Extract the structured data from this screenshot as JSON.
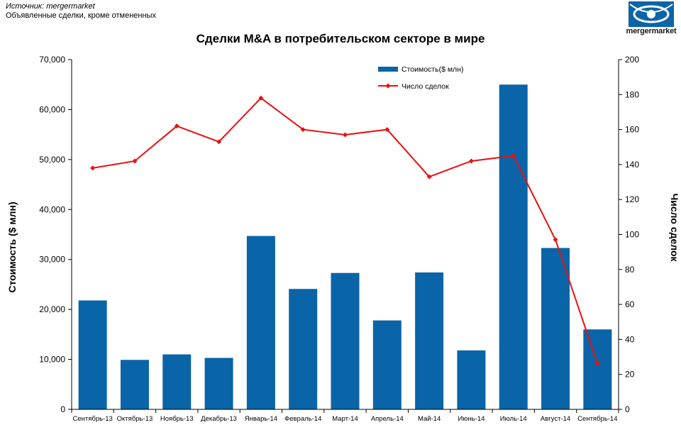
{
  "header": {
    "source": "Источник: mergermarket",
    "note": "Объявленные сделки, кроме отмененных",
    "logo_text": "mergermarket"
  },
  "colors": {
    "bar": "#0a64a8",
    "line": "#e81010",
    "logo": "#0a64a8"
  },
  "chart_data": {
    "type": "bar",
    "title": "Сделки M&A в потребительском секторе в мире",
    "categories": [
      "Сентябрь-13",
      "Октябрь-13",
      "Ноябрь-13",
      "Декабрь-13",
      "Январь-14",
      "Февраль-14",
      "Март-14",
      "Апрель-14",
      "Май-14",
      "Июнь-14",
      "Июль-14",
      "Август-14",
      "Сентябрь-14"
    ],
    "series": [
      {
        "name": "Стоимость($ млн)",
        "type": "bar",
        "axis": "left",
        "values": [
          21800,
          9900,
          11000,
          10300,
          34700,
          24100,
          27300,
          17800,
          27400,
          11800,
          65000,
          32300,
          16000
        ]
      },
      {
        "name": "Число сделок",
        "type": "line",
        "axis": "right",
        "values": [
          138,
          142,
          162,
          153,
          178,
          160,
          157,
          160,
          133,
          142,
          145,
          97,
          26
        ]
      }
    ],
    "ylabel": "Стоимость ($ млн)",
    "ylabel_right": "Число сделок",
    "ylim": [
      0,
      70000
    ],
    "ylim_right": [
      0,
      200
    ],
    "yticks": [
      "0",
      "10,000",
      "20,000",
      "30,000",
      "40,000",
      "50,000",
      "60,000",
      "70,000"
    ],
    "yticks_right": [
      "0",
      "20",
      "40",
      "60",
      "80",
      "100",
      "120",
      "140",
      "160",
      "180",
      "200"
    ],
    "legend": "top-center",
    "grid": false
  }
}
